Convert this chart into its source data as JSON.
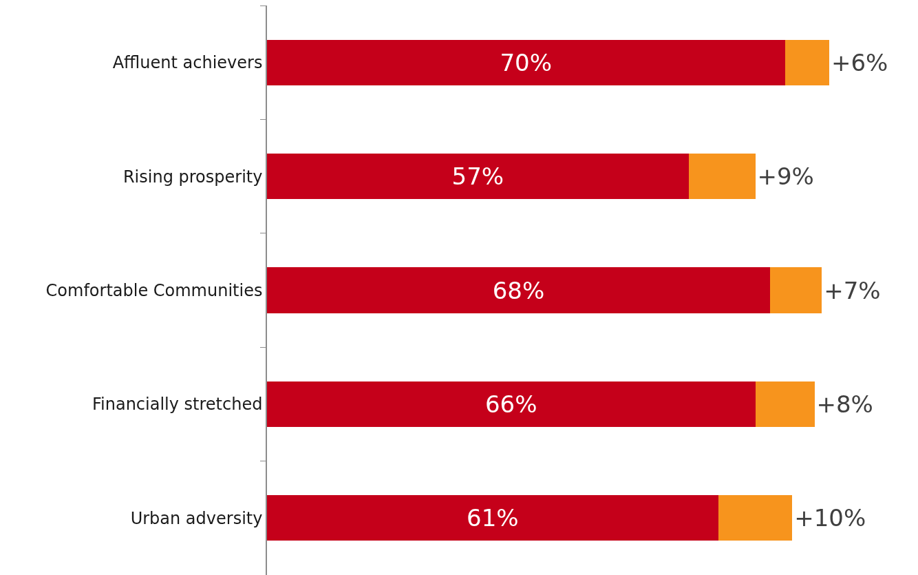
{
  "chart_data": {
    "type": "bar",
    "orientation": "horizontal",
    "stacked": true,
    "categories": [
      "Affluent achievers",
      "Rising prosperity",
      "Comfortable Communities",
      "Financially stretched",
      "Urban adversity"
    ],
    "series": [
      {
        "color": "#c5001a",
        "values": [
          70,
          57,
          68,
          66,
          61
        ],
        "value_labels": [
          "70%",
          "57%",
          "68%",
          "66%",
          "61%"
        ]
      },
      {
        "color": "#f7941d",
        "values": [
          6,
          9,
          7,
          8,
          10
        ],
        "value_labels": [
          "+6%",
          "+9%",
          "+7%",
          "+8%",
          "+10%"
        ]
      }
    ],
    "xlim": [
      0,
      88
    ],
    "tick_labels": "y"
  }
}
